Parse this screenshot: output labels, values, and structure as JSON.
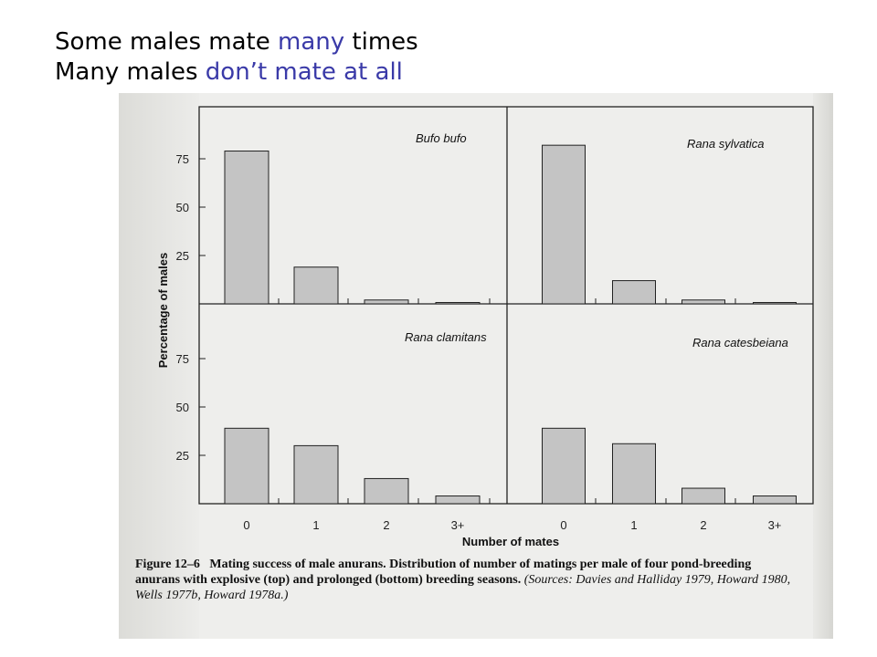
{
  "slide": {
    "title_line1_pre": "Some males mate ",
    "title_line1_hl": "many",
    "title_line1_post": " times",
    "title_line2_pre": "Many males ",
    "title_line2_hl": "don’t mate at all",
    "highlight_color": "#3a3aa8"
  },
  "caption": {
    "label": "Figure 12–6",
    "bold_text": "Mating success of male anurans. Distribution of number of matings per male of four pond-breeding anurans with explosive (top) and prolonged (bottom) breeding seasons.",
    "sources": "(Sources: Davies and Halliday 1979, Howard 1980, Wells 1977b, Howard 1978a.)"
  },
  "chart_data": {
    "type": "bar",
    "ylabel": "Percentage of males",
    "xlabel": "Number of mates",
    "categories": [
      "0",
      "1",
      "2",
      "3+"
    ],
    "y_ticks": [
      25,
      50,
      75
    ],
    "ylim": [
      0,
      80
    ],
    "bar_color": "#c4c4c4",
    "panels": [
      {
        "name": "Bufo bufo",
        "row": "top",
        "col": "left",
        "values": [
          79,
          19,
          2,
          0
        ]
      },
      {
        "name": "Rana sylvatica",
        "row": "top",
        "col": "right",
        "values": [
          82,
          12,
          2,
          0
        ]
      },
      {
        "name": "Rana clamitans",
        "row": "bottom",
        "col": "left",
        "values": [
          39,
          30,
          13,
          4
        ]
      },
      {
        "name": "Rana catesbeiana",
        "row": "bottom",
        "col": "right",
        "values": [
          39,
          31,
          8,
          4
        ]
      }
    ]
  }
}
